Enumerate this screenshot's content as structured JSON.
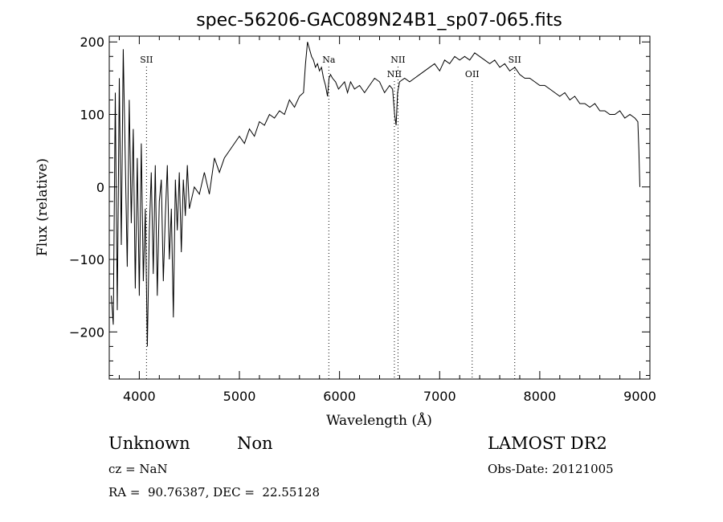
{
  "chart_data": {
    "type": "line",
    "title": "spec-56206-GAC089N24B1_sp07-065.fits",
    "xlabel": "Wavelength (Å)",
    "ylabel": "Flux (relative)",
    "xlim": [
      3700,
      9100
    ],
    "ylim": [
      -265,
      208
    ],
    "xticks": [
      4000,
      5000,
      6000,
      7000,
      8000,
      9000
    ],
    "xtick_labels": [
      "4000",
      "5000",
      "6000",
      "7000",
      "8000",
      "9000"
    ],
    "yticks": [
      -200,
      -100,
      0,
      100,
      200
    ],
    "ytick_labels": [
      "−200",
      "−100",
      "0",
      "100",
      "200"
    ],
    "grid": false,
    "series": [
      {
        "x": [
          3720,
          3740,
          3760,
          3780,
          3800,
          3820,
          3840,
          3860,
          3880,
          3900,
          3920,
          3940,
          3960,
          3980,
          4000,
          4020,
          4040,
          4060,
          4080,
          4100,
          4120,
          4140,
          4160,
          4180,
          4200,
          4220,
          4240,
          4260,
          4280,
          4300,
          4320,
          4340,
          4360,
          4380,
          4400,
          4420,
          4440,
          4460,
          4480,
          4500,
          4550,
          4600,
          4650,
          4700,
          4750,
          4800,
          4850,
          4900,
          4950,
          5000,
          5050,
          5100,
          5150,
          5200,
          5250,
          5300,
          5350,
          5400,
          5450,
          5500,
          5550,
          5600,
          5640,
          5660,
          5680,
          5700,
          5720,
          5740,
          5760,
          5780,
          5800,
          5820,
          5840,
          5860,
          5880,
          5895,
          5910,
          5930,
          5960,
          5990,
          6020,
          6050,
          6080,
          6110,
          6150,
          6200,
          6250,
          6300,
          6350,
          6400,
          6450,
          6500,
          6530,
          6550,
          6565,
          6580,
          6600,
          6650,
          6700,
          6750,
          6800,
          6850,
          6900,
          6950,
          7000,
          7050,
          7100,
          7150,
          7200,
          7250,
          7300,
          7350,
          7400,
          7450,
          7500,
          7550,
          7600,
          7650,
          7700,
          7750,
          7800,
          7850,
          7900,
          7950,
          8000,
          8050,
          8100,
          8150,
          8200,
          8250,
          8300,
          8350,
          8400,
          8450,
          8500,
          8550,
          8600,
          8650,
          8700,
          8750,
          8800,
          8850,
          8900,
          8950,
          8980,
          8990,
          9000
        ],
        "y": [
          -150,
          -190,
          130,
          -170,
          150,
          -80,
          190,
          40,
          -110,
          120,
          -50,
          80,
          -140,
          40,
          -150,
          60,
          -130,
          -30,
          -220,
          -60,
          20,
          -120,
          30,
          -150,
          -20,
          10,
          -130,
          -40,
          30,
          -100,
          -30,
          -180,
          10,
          -60,
          20,
          -90,
          10,
          -40,
          30,
          -30,
          0,
          -10,
          20,
          -10,
          40,
          20,
          40,
          50,
          60,
          70,
          60,
          80,
          70,
          90,
          85,
          100,
          95,
          105,
          100,
          120,
          110,
          125,
          130,
          170,
          200,
          190,
          180,
          175,
          165,
          170,
          160,
          165,
          150,
          140,
          125,
          150,
          155,
          150,
          145,
          135,
          140,
          145,
          130,
          145,
          135,
          140,
          130,
          140,
          150,
          145,
          130,
          140,
          135,
          100,
          85,
          130,
          145,
          150,
          145,
          150,
          155,
          160,
          165,
          170,
          160,
          175,
          170,
          180,
          175,
          180,
          175,
          185,
          180,
          175,
          170,
          175,
          165,
          170,
          160,
          165,
          155,
          150,
          150,
          145,
          140,
          140,
          135,
          130,
          125,
          130,
          120,
          125,
          115,
          115,
          110,
          115,
          105,
          105,
          100,
          100,
          105,
          95,
          100,
          95,
          90,
          50,
          0
        ]
      }
    ],
    "annotations": [
      {
        "label": "SII",
        "x": 4072,
        "row": "top"
      },
      {
        "label": "Na",
        "x": 5893,
        "row": "top"
      },
      {
        "label": "NII",
        "x": 6548,
        "row": "lower"
      },
      {
        "label": "NII",
        "x": 6584,
        "row": "upper"
      },
      {
        "label": "OII",
        "x": 7325,
        "row": "lower"
      },
      {
        "label": "SII",
        "x": 7750,
        "row": "top"
      }
    ]
  },
  "footer": {
    "class_label": "Unknown",
    "subclass_label": "Non",
    "survey": "LAMOST DR2",
    "cz": "cz = NaN",
    "obs_date": "Obs-Date: 20121005",
    "coords": "RA =  90.76387, DEC =  22.55128"
  }
}
